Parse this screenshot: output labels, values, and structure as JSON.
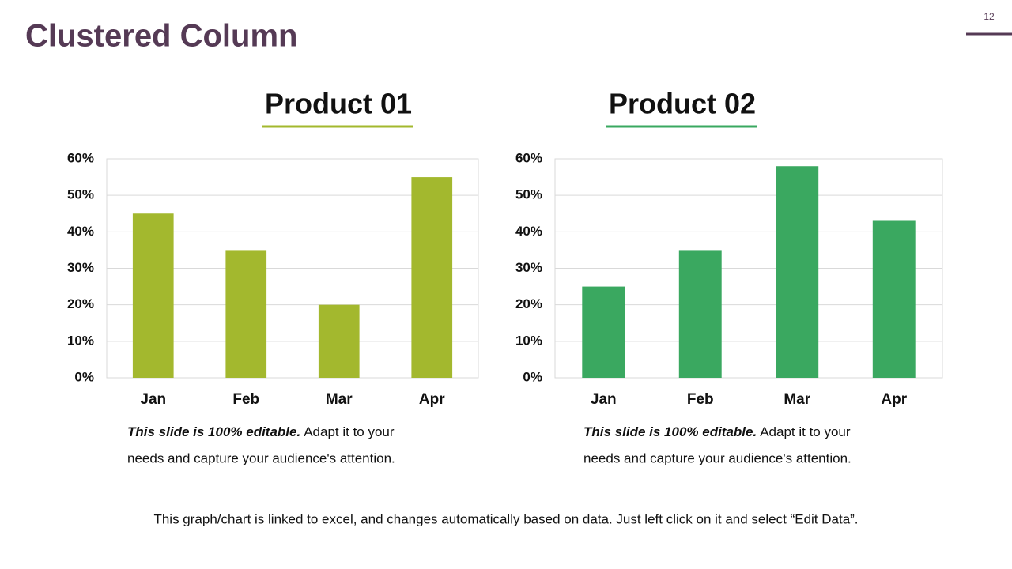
{
  "header": {
    "title": "Clustered Column",
    "page_number": "12"
  },
  "chart_data": [
    {
      "type": "bar",
      "title": "Product 01",
      "categories": [
        "Jan",
        "Feb",
        "Mar",
        "Apr"
      ],
      "values": [
        45,
        35,
        20,
        55
      ],
      "color": "#a3b82e",
      "ylim": [
        0,
        60
      ],
      "yticks": [
        {
          "value": 0,
          "label": "0%"
        },
        {
          "value": 10,
          "label": "10%"
        },
        {
          "value": 20,
          "label": "20%"
        },
        {
          "value": 30,
          "label": "30%"
        },
        {
          "value": 40,
          "label": "40%"
        },
        {
          "value": 50,
          "label": "50%"
        },
        {
          "value": 60,
          "label": "60%"
        }
      ],
      "grid": true
    },
    {
      "type": "bar",
      "title": "Product 02",
      "categories": [
        "Jan",
        "Feb",
        "Mar",
        "Apr"
      ],
      "values": [
        25,
        35,
        58,
        43
      ],
      "color": "#3aa860",
      "ylim": [
        0,
        60
      ],
      "yticks": [
        {
          "value": 0,
          "label": "0%"
        },
        {
          "value": 10,
          "label": "10%"
        },
        {
          "value": 20,
          "label": "20%"
        },
        {
          "value": 30,
          "label": "30%"
        },
        {
          "value": 40,
          "label": "40%"
        },
        {
          "value": 50,
          "label": "50%"
        },
        {
          "value": 60,
          "label": "60%"
        }
      ],
      "grid": true
    }
  ],
  "captions": [
    {
      "bold": "This slide is 100% editable.",
      "lines": [
        "Adapt it to your",
        "needs and capture your audience's attention."
      ]
    },
    {
      "bold": "This slide is 100% editable.",
      "lines": [
        "Adapt it to your",
        "needs and capture your audience's attention."
      ]
    }
  ],
  "footer": "This graph/chart is linked to excel, and changes automatically based on data. Just left click on it and select “Edit Data”."
}
